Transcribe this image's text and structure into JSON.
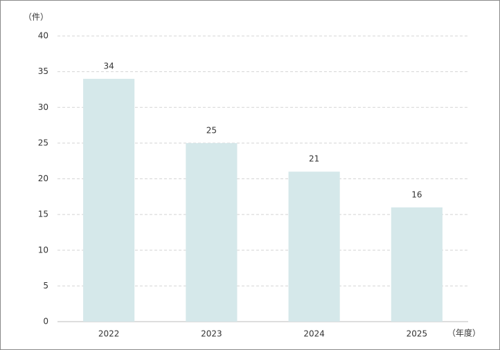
{
  "chart_data": {
    "type": "bar",
    "y_label": "（件）",
    "x_label": "（年度）",
    "categories": [
      "2022",
      "2023",
      "2024",
      "2025"
    ],
    "values": [
      34,
      25,
      21,
      16
    ],
    "color": "#d5e8ea",
    "ylim": [
      0,
      40
    ],
    "yticks": [
      0,
      5,
      10,
      15,
      20,
      25,
      30,
      35,
      40
    ],
    "grid": true
  }
}
